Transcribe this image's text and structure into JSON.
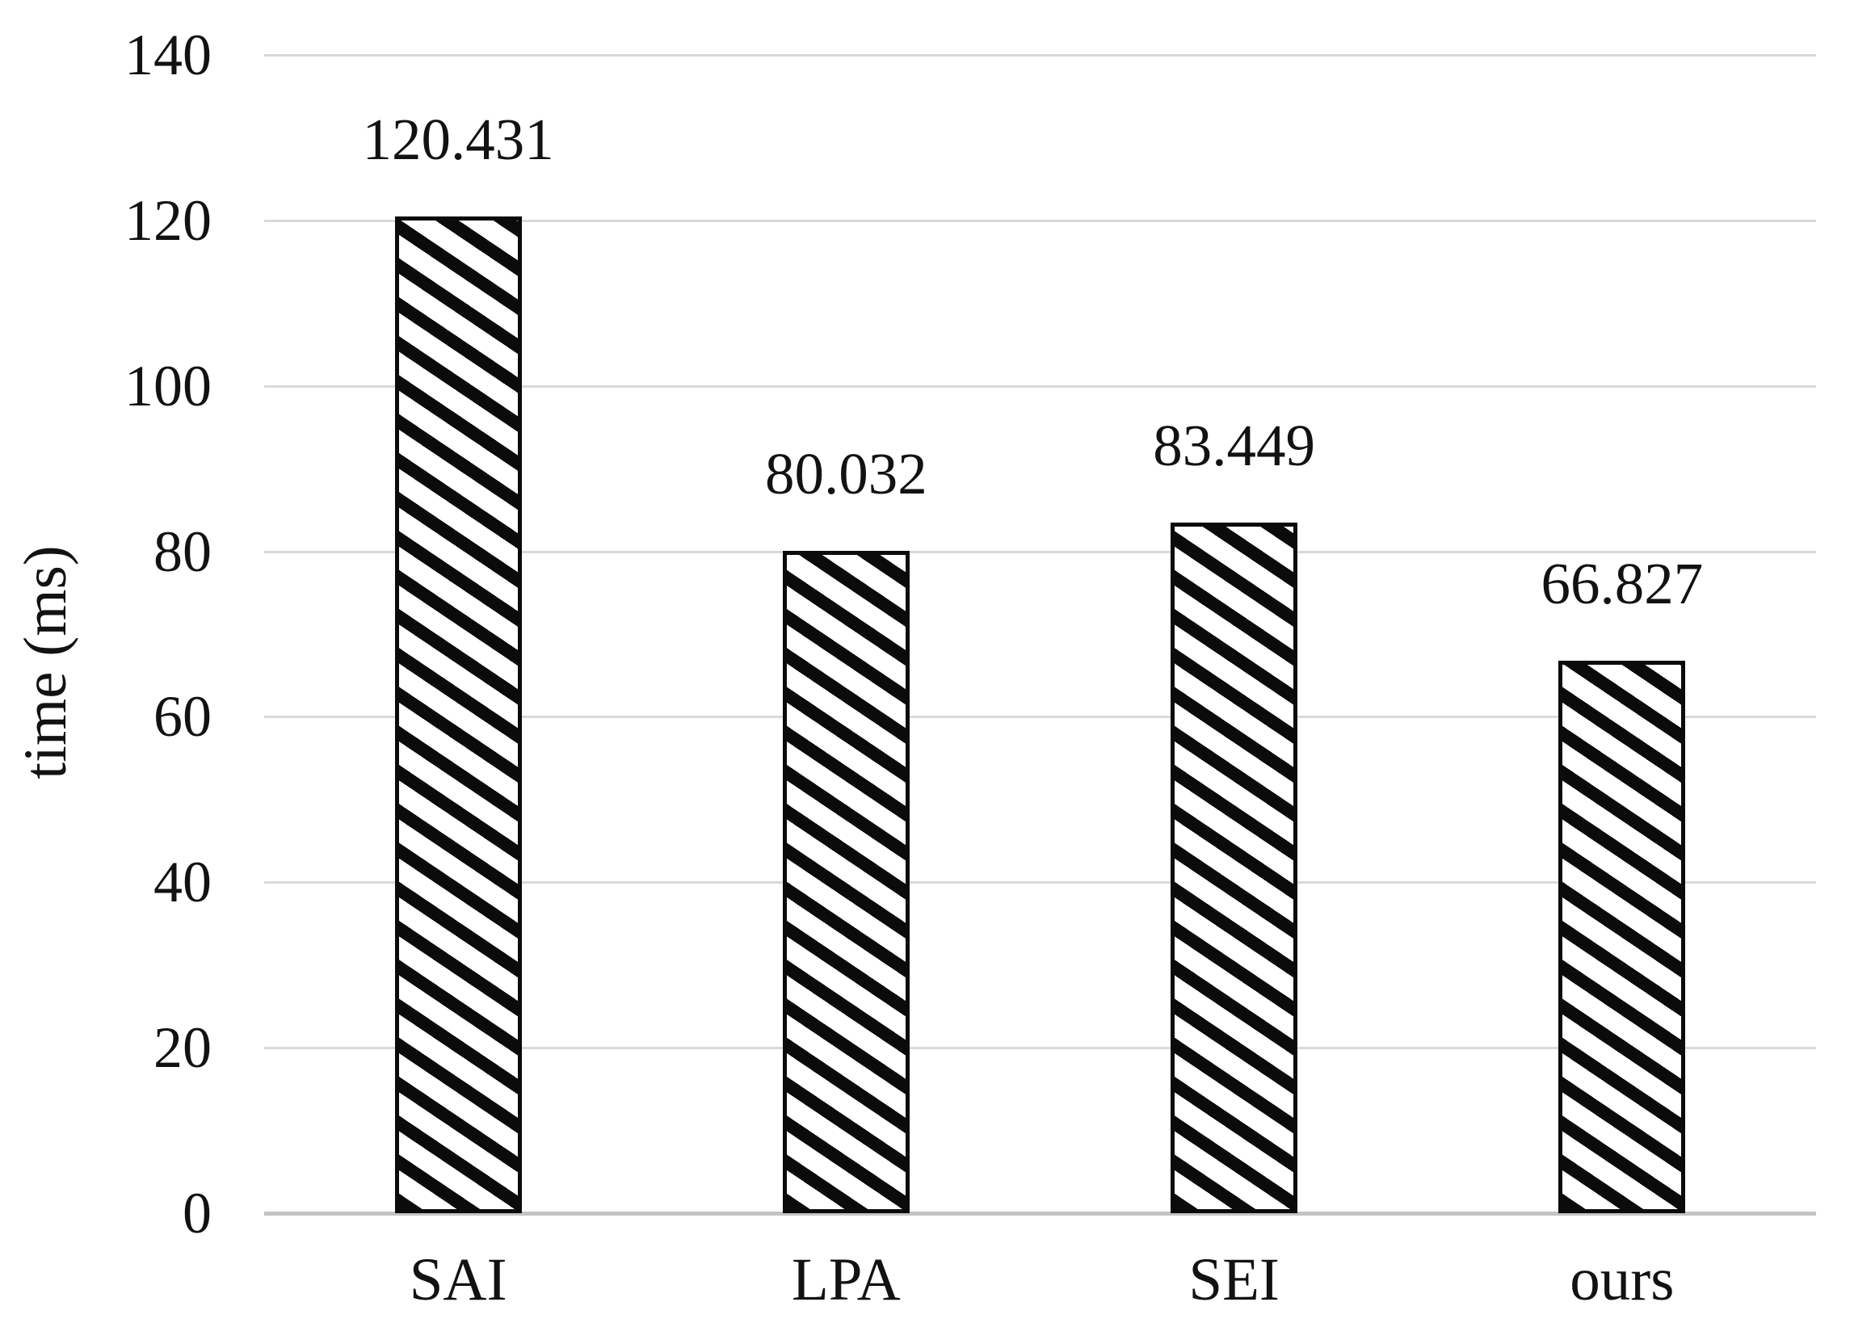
{
  "chart_data": {
    "type": "bar",
    "categories": [
      "SAI",
      "LPA",
      "SEI",
      "ours"
    ],
    "values": [
      120.431,
      80.032,
      83.449,
      66.827
    ],
    "value_labels": [
      "120.431",
      "80.032",
      "83.449",
      "66.827"
    ],
    "title": "",
    "xlabel": "",
    "ylabel": "time (ms)",
    "ylim": [
      0,
      140
    ],
    "yticks": [
      0,
      20,
      40,
      60,
      80,
      100,
      120,
      140
    ],
    "grid": true,
    "legend_position": "none",
    "style": {
      "bar_fill": "#ffffff",
      "bar_hatch": "diagonal-down",
      "bar_hatch_color": "#0b0b0b",
      "bar_border_color": "#0b0b0b",
      "gridline_color": "#d9d9d9",
      "axis_line_color": "#c4c4c4",
      "text_color": "#121212",
      "background": "#ffffff"
    }
  }
}
